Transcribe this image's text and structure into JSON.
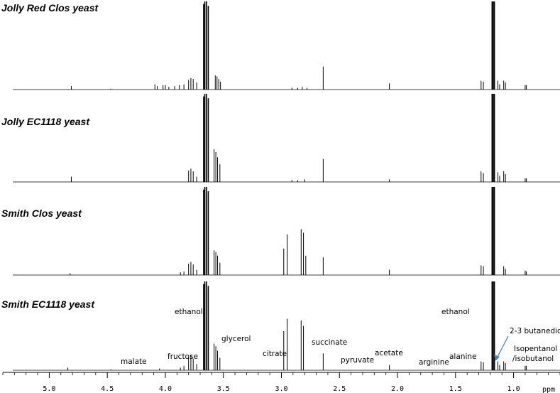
{
  "chart_data": {
    "type": "line",
    "xlabel": "ppm",
    "x_reversed": true,
    "xlim": [
      5.4,
      0.6
    ],
    "x_ticks": [
      5.0,
      4.5,
      4.0,
      3.5,
      3.0,
      2.5,
      2.0,
      1.5,
      1.0
    ],
    "x_tick_labels": [
      "5.0",
      "4.5",
      "4.0",
      "3.5",
      "3.0",
      "2.5",
      "2.0",
      "1.5",
      "1.0"
    ],
    "ylim": [
      0,
      1
    ],
    "series": [
      {
        "name": "Jolly Red Clos yeast",
        "peaks": [
          {
            "x": 4.81,
            "h": 0.04
          },
          {
            "x": 4.47,
            "h": 0.01
          },
          {
            "x": 4.09,
            "h": 0.06
          },
          {
            "x": 4.07,
            "h": 0.04
          },
          {
            "x": 4.02,
            "h": 0.05
          },
          {
            "x": 4.0,
            "h": 0.05
          },
          {
            "x": 3.97,
            "h": 0.03
          },
          {
            "x": 3.92,
            "h": 0.04
          },
          {
            "x": 3.88,
            "h": 0.05
          },
          {
            "x": 3.84,
            "h": 0.06
          },
          {
            "x": 3.8,
            "h": 0.11
          },
          {
            "x": 3.78,
            "h": 0.13
          },
          {
            "x": 3.76,
            "h": 0.12
          },
          {
            "x": 3.73,
            "h": 0.08
          },
          {
            "x": 3.67,
            "h": 0.97
          },
          {
            "x": 3.66,
            "h": 1.0
          },
          {
            "x": 3.645,
            "h": 1.0
          },
          {
            "x": 3.63,
            "h": 0.95
          },
          {
            "x": 3.57,
            "h": 0.16
          },
          {
            "x": 3.555,
            "h": 0.15
          },
          {
            "x": 3.54,
            "h": 0.12
          },
          {
            "x": 3.525,
            "h": 0.09
          },
          {
            "x": 2.91,
            "h": 0.02
          },
          {
            "x": 2.86,
            "h": 0.02
          },
          {
            "x": 2.82,
            "h": 0.03
          },
          {
            "x": 2.78,
            "h": 0.02
          },
          {
            "x": 2.64,
            "h": 0.26
          },
          {
            "x": 2.07,
            "h": 0.07
          },
          {
            "x": 1.28,
            "h": 0.1
          },
          {
            "x": 1.26,
            "h": 0.09
          },
          {
            "x": 1.185,
            "h": 1.0
          },
          {
            "x": 1.175,
            "h": 1.0
          },
          {
            "x": 1.165,
            "h": 1.0
          },
          {
            "x": 1.135,
            "h": 0.1
          },
          {
            "x": 1.12,
            "h": 0.06
          },
          {
            "x": 1.085,
            "h": 0.1
          },
          {
            "x": 1.07,
            "h": 0.08
          },
          {
            "x": 0.9,
            "h": 0.05
          },
          {
            "x": 0.89,
            "h": 0.05
          }
        ]
      },
      {
        "name": "Jolly EC1118 yeast",
        "peaks": [
          {
            "x": 4.81,
            "h": 0.06
          },
          {
            "x": 3.8,
            "h": 0.13
          },
          {
            "x": 3.78,
            "h": 0.15
          },
          {
            "x": 3.76,
            "h": 0.12
          },
          {
            "x": 3.73,
            "h": 0.06
          },
          {
            "x": 3.67,
            "h": 0.97
          },
          {
            "x": 3.66,
            "h": 1.0
          },
          {
            "x": 3.645,
            "h": 1.0
          },
          {
            "x": 3.63,
            "h": 0.95
          },
          {
            "x": 3.58,
            "h": 0.37
          },
          {
            "x": 3.565,
            "h": 0.34
          },
          {
            "x": 3.55,
            "h": 0.28
          },
          {
            "x": 3.53,
            "h": 0.2
          },
          {
            "x": 2.91,
            "h": 0.02
          },
          {
            "x": 2.86,
            "h": 0.02
          },
          {
            "x": 2.8,
            "h": 0.03
          },
          {
            "x": 2.64,
            "h": 0.26
          },
          {
            "x": 2.07,
            "h": 0.03
          },
          {
            "x": 1.28,
            "h": 0.12
          },
          {
            "x": 1.26,
            "h": 0.1
          },
          {
            "x": 1.185,
            "h": 1.0
          },
          {
            "x": 1.175,
            "h": 1.0
          },
          {
            "x": 1.165,
            "h": 1.0
          },
          {
            "x": 1.135,
            "h": 0.11
          },
          {
            "x": 1.12,
            "h": 0.07
          },
          {
            "x": 1.085,
            "h": 0.12
          },
          {
            "x": 1.07,
            "h": 0.09
          },
          {
            "x": 0.9,
            "h": 0.04
          },
          {
            "x": 0.89,
            "h": 0.04
          }
        ]
      },
      {
        "name": "Smith Clos yeast",
        "peaks": [
          {
            "x": 4.82,
            "h": 0.02
          },
          {
            "x": 3.87,
            "h": 0.03
          },
          {
            "x": 3.84,
            "h": 0.04
          },
          {
            "x": 3.8,
            "h": 0.13
          },
          {
            "x": 3.78,
            "h": 0.15
          },
          {
            "x": 3.76,
            "h": 0.12
          },
          {
            "x": 3.73,
            "h": 0.06
          },
          {
            "x": 3.67,
            "h": 0.97
          },
          {
            "x": 3.66,
            "h": 1.0
          },
          {
            "x": 3.645,
            "h": 1.0
          },
          {
            "x": 3.63,
            "h": 0.95
          },
          {
            "x": 3.58,
            "h": 0.28
          },
          {
            "x": 3.565,
            "h": 0.26
          },
          {
            "x": 3.55,
            "h": 0.22
          },
          {
            "x": 3.53,
            "h": 0.14
          },
          {
            "x": 2.98,
            "h": 0.3
          },
          {
            "x": 2.95,
            "h": 0.46
          },
          {
            "x": 2.83,
            "h": 0.52
          },
          {
            "x": 2.81,
            "h": 0.48
          },
          {
            "x": 2.79,
            "h": 0.22
          },
          {
            "x": 2.64,
            "h": 0.2
          },
          {
            "x": 2.07,
            "h": 0.06
          },
          {
            "x": 1.28,
            "h": 0.11
          },
          {
            "x": 1.26,
            "h": 0.1
          },
          {
            "x": 1.185,
            "h": 1.0
          },
          {
            "x": 1.175,
            "h": 1.0
          },
          {
            "x": 1.165,
            "h": 1.0
          },
          {
            "x": 1.085,
            "h": 0.1
          },
          {
            "x": 1.07,
            "h": 0.07
          },
          {
            "x": 0.9,
            "h": 0.05
          },
          {
            "x": 0.89,
            "h": 0.04
          }
        ]
      },
      {
        "name": "Smith EC1118 yeast",
        "peaks": [
          {
            "x": 4.84,
            "h": 0.03
          },
          {
            "x": 4.47,
            "h": 0.01
          },
          {
            "x": 4.05,
            "h": 0.02
          },
          {
            "x": 3.87,
            "h": 0.03
          },
          {
            "x": 3.84,
            "h": 0.05
          },
          {
            "x": 3.8,
            "h": 0.15
          },
          {
            "x": 3.78,
            "h": 0.17
          },
          {
            "x": 3.76,
            "h": 0.13
          },
          {
            "x": 3.73,
            "h": 0.07
          },
          {
            "x": 3.67,
            "h": 0.97
          },
          {
            "x": 3.66,
            "h": 1.0
          },
          {
            "x": 3.645,
            "h": 1.0
          },
          {
            "x": 3.63,
            "h": 0.95
          },
          {
            "x": 3.58,
            "h": 0.3
          },
          {
            "x": 3.565,
            "h": 0.27
          },
          {
            "x": 3.55,
            "h": 0.22
          },
          {
            "x": 3.53,
            "h": 0.14
          },
          {
            "x": 2.98,
            "h": 0.44
          },
          {
            "x": 2.95,
            "h": 0.58
          },
          {
            "x": 2.83,
            "h": 0.56
          },
          {
            "x": 2.81,
            "h": 0.5
          },
          {
            "x": 2.64,
            "h": 0.19
          },
          {
            "x": 2.07,
            "h": 0.06
          },
          {
            "x": 1.28,
            "h": 0.1
          },
          {
            "x": 1.26,
            "h": 0.09
          },
          {
            "x": 1.185,
            "h": 1.0
          },
          {
            "x": 1.175,
            "h": 1.0
          },
          {
            "x": 1.165,
            "h": 1.0
          },
          {
            "x": 1.135,
            "h": 0.1
          },
          {
            "x": 1.12,
            "h": 0.06
          },
          {
            "x": 1.085,
            "h": 0.1
          },
          {
            "x": 1.07,
            "h": 0.08
          },
          {
            "x": 0.9,
            "h": 0.05
          },
          {
            "x": 0.89,
            "h": 0.05
          }
        ]
      }
    ],
    "annotations": [
      {
        "text": "malate",
        "x": 4.5,
        "series": 3
      },
      {
        "text": "fructose",
        "x": 3.98,
        "series": 3
      },
      {
        "text": "ethanol",
        "x": 3.82,
        "series": 3
      },
      {
        "text": "glycerol",
        "x": 3.42,
        "series": 3
      },
      {
        "text": "citrate",
        "x": 3.08,
        "series": 3
      },
      {
        "text": "succinate",
        "x": 2.64,
        "series": 3
      },
      {
        "text": "pyruvate",
        "x": 2.36,
        "series": 3
      },
      {
        "text": "acetate",
        "x": 2.07,
        "series": 3
      },
      {
        "text": "arginine",
        "x": 1.62,
        "series": 3
      },
      {
        "text": "alanine",
        "x": 1.4,
        "series": 3
      },
      {
        "text": "ethanol",
        "x": 1.42,
        "series": 3
      },
      {
        "text": "2-3 butanediol",
        "x": 0.88,
        "series": 3
      },
      {
        "text": "Isopentanol",
        "x": 0.78,
        "series": 3
      },
      {
        "text": "/isobutanol",
        "x": 0.8,
        "series": 3
      }
    ],
    "arrow": {
      "from_x": 1.07,
      "to_x": 1.155,
      "color": "#4a7fc1"
    }
  }
}
